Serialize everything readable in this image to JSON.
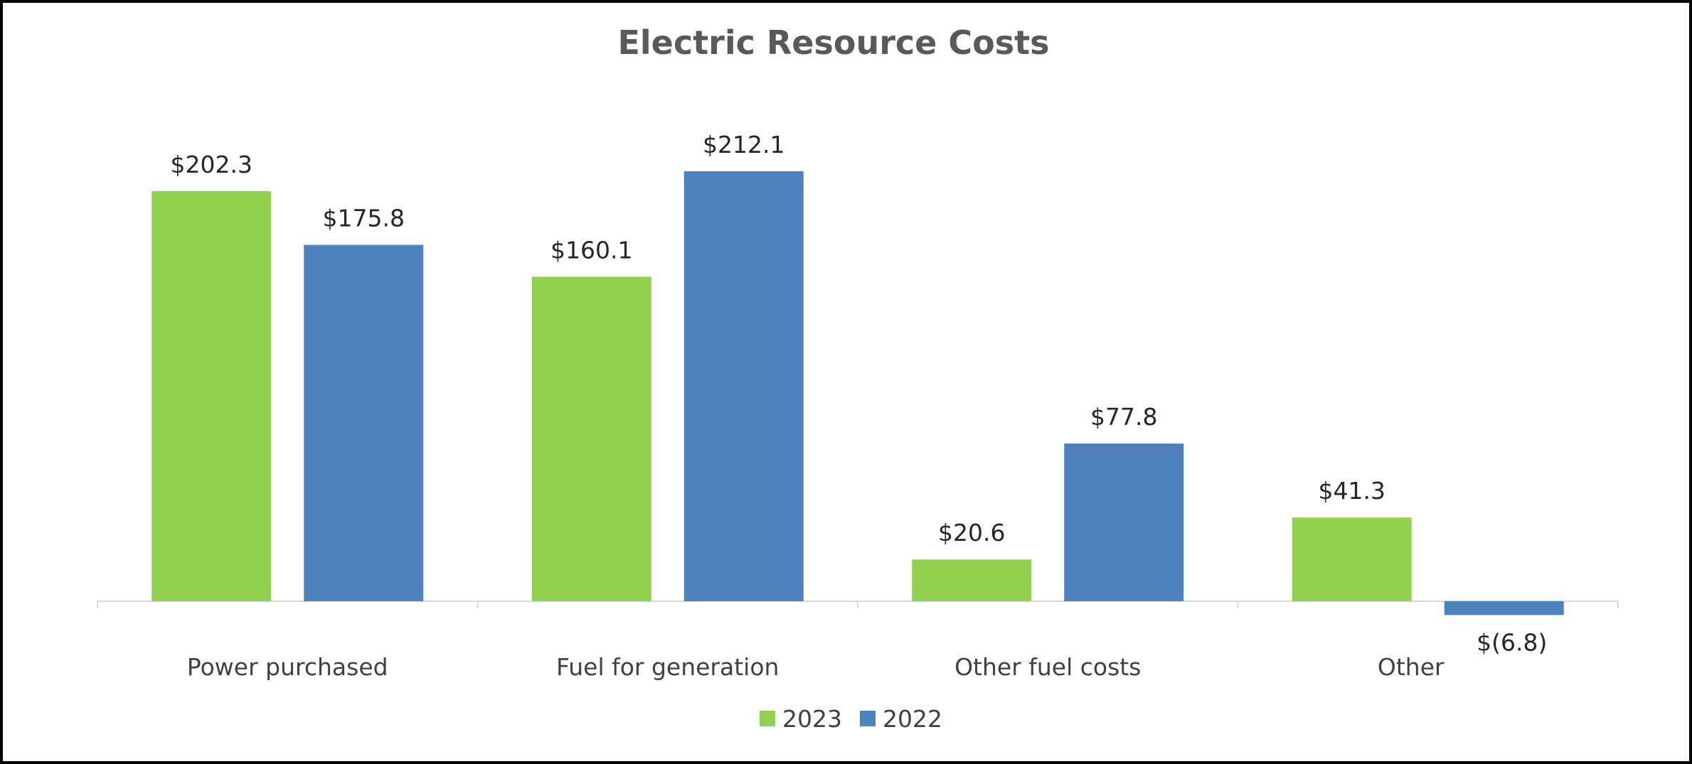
{
  "chart_data": {
    "type": "bar",
    "title": "Electric Resource Costs",
    "categories": [
      "Power purchased",
      "Fuel for generation",
      "Other fuel costs",
      "Other"
    ],
    "series": [
      {
        "name": "2023",
        "color": "#92D050",
        "values": [
          202.3,
          160.1,
          20.6,
          41.3
        ],
        "labels": [
          "$202.3",
          "$160.1",
          "$20.6",
          "$41.3"
        ]
      },
      {
        "name": "2022",
        "color": "#4F81BD",
        "values": [
          175.8,
          212.1,
          77.8,
          -6.8
        ],
        "labels": [
          "$175.8",
          "$212.1",
          "$77.8",
          "$(6.8)"
        ]
      }
    ],
    "ylim": [
      -6.8,
      212.1
    ],
    "grid": false,
    "legend": "bottom-center",
    "xlabel": "",
    "ylabel": ""
  }
}
